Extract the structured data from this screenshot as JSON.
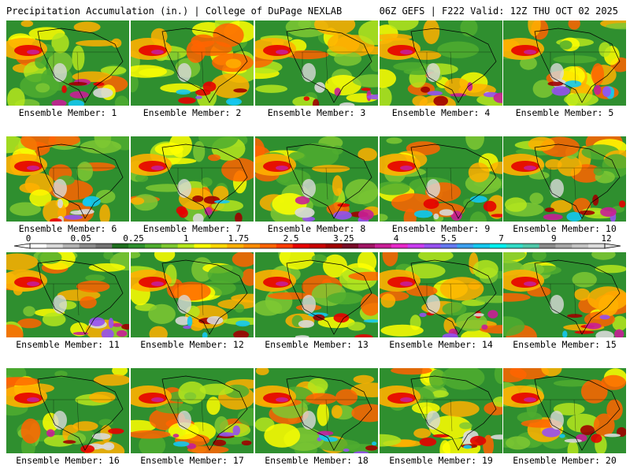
{
  "header": {
    "left": "Precipitation Accumulation (in.) | College of DuPage NEXLAB",
    "right": "06Z GEFS | F222 Valid: 12Z THU OCT 02 2025"
  },
  "panels": [
    {
      "label": "Ensemble Member: 1"
    },
    {
      "label": "Ensemble Member: 2"
    },
    {
      "label": "Ensemble Member: 3"
    },
    {
      "label": "Ensemble Member: 4"
    },
    {
      "label": "Ensemble Member: 5"
    },
    {
      "label": "Ensemble Member: 6"
    },
    {
      "label": "Ensemble Member: 7"
    },
    {
      "label": "Ensemble Member: 8"
    },
    {
      "label": "Ensemble Member: 9"
    },
    {
      "label": "Ensemble Member: 10"
    },
    {
      "label": "Ensemble Member: 11"
    },
    {
      "label": "Ensemble Member: 12"
    },
    {
      "label": "Ensemble Member: 13"
    },
    {
      "label": "Ensemble Member: 14"
    },
    {
      "label": "Ensemble Member: 15"
    },
    {
      "label": "Ensemble Member: 16"
    },
    {
      "label": "Ensemble Member: 17"
    },
    {
      "label": "Ensemble Member: 18"
    },
    {
      "label": "Ensemble Member: 19"
    },
    {
      "label": "Ensemble Member: 20"
    }
  ],
  "colorbar": {
    "labels": [
      "0",
      "0.05",
      "0.25",
      "1",
      "1.75",
      "2.5",
      "3.25",
      "4",
      "5.5",
      "7",
      "9",
      "12"
    ],
    "colors": [
      "#ffffff",
      "#d9d9d9",
      "#b3b3b3",
      "#8c8c8c",
      "#737373",
      "#1e6e1e",
      "#2f8f2f",
      "#4fad2f",
      "#7ec832",
      "#b5e61d",
      "#ffff00",
      "#ffd700",
      "#ffb000",
      "#ff8c00",
      "#ff6400",
      "#ff3c00",
      "#e60000",
      "#c80000",
      "#a00000",
      "#780a28",
      "#a01464",
      "#c81e96",
      "#e628c8",
      "#c83cf0",
      "#9650f0",
      "#6478f0",
      "#3ca0f0",
      "#14c8f0",
      "#00f0f0",
      "#32dcc8",
      "#50c8aa",
      "#8c8c8c",
      "#a8a8a8",
      "#c4c4c4",
      "#dcdcdc"
    ]
  },
  "map_palette": {
    "land": "#2f8f2f",
    "bands": [
      "#4fad2f",
      "#7ec832",
      "#b5e61d",
      "#ffff00",
      "#ffb000",
      "#ff6400",
      "#e60000",
      "#a00000",
      "#c81e96",
      "#9650f0",
      "#14c8f0",
      "#d9d9d9"
    ],
    "outline": "#000000"
  }
}
